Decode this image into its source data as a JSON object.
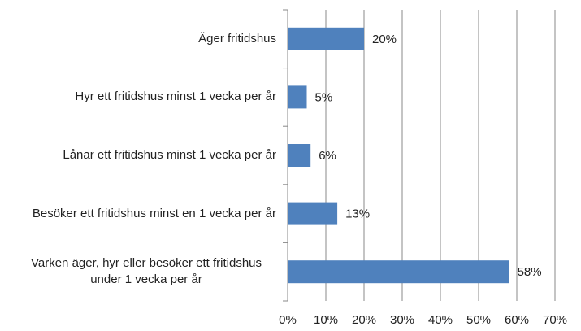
{
  "chart_data": {
    "type": "bar",
    "orientation": "horizontal",
    "categories": [
      "Äger fritidshus",
      "Hyr ett fritidshus minst 1 vecka per år",
      "Lånar ett fritidshus minst 1 vecka per år",
      "Besöker ett fritidshus minst en 1 vecka per år",
      "Varken äger, hyr eller besöker ett fritidshus under 1 vecka per år"
    ],
    "values": [
      20,
      5,
      6,
      13,
      58
    ],
    "value_labels": [
      "20%",
      "5%",
      "6%",
      "13%",
      "58%"
    ],
    "color": "#4f81bd",
    "xlim": [
      0,
      70
    ],
    "xticks": [
      {
        "value": 0,
        "label": "0%"
      },
      {
        "value": 10,
        "label": "10%"
      },
      {
        "value": 20,
        "label": "20%"
      },
      {
        "value": 30,
        "label": "30%"
      },
      {
        "value": 40,
        "label": "40%"
      },
      {
        "value": 50,
        "label": "50%"
      },
      {
        "value": 60,
        "label": "60%"
      },
      {
        "value": 70,
        "label": "70%"
      }
    ],
    "grid": true
  }
}
